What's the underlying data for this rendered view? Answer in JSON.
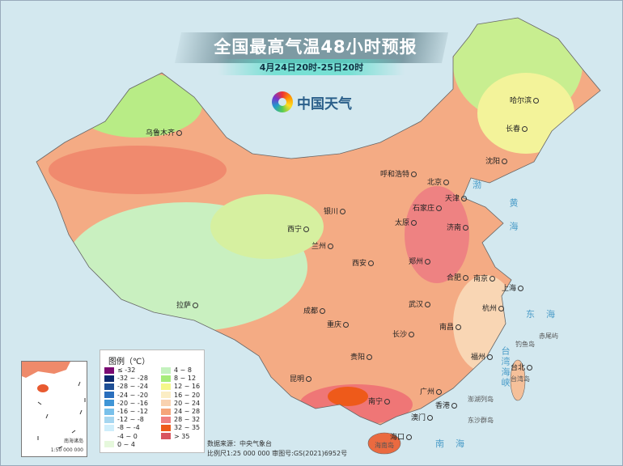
{
  "header": {
    "title": "全国最高气温48小时预报",
    "subtitle": "4月24日20时-25日20时",
    "logo_text": "中国天气",
    "logo_icon": "china-weather-swirl-logo"
  },
  "cities": [
    "乌鲁木齐",
    "哈尔滨",
    "长春",
    "沈阳",
    "呼和浩特",
    "北京",
    "天津",
    "石家庄",
    "太原",
    "济南",
    "银川",
    "西宁",
    "兰州",
    "郑州",
    "西安",
    "合肥",
    "南京",
    "上海",
    "拉萨",
    "成都",
    "武汉",
    "杭州",
    "重庆",
    "长沙",
    "南昌",
    "贵阳",
    "福州",
    "台北",
    "昆明",
    "南宁",
    "广州",
    "香港",
    "澳门",
    "海口"
  ],
  "seas": [
    "渤",
    "黄海",
    "东海",
    "南海",
    "台湾海峡"
  ],
  "islands": [
    "台湾岛",
    "海南岛",
    "钓鱼岛",
    "赤尾屿",
    "澎湖列岛",
    "东沙群岛"
  ],
  "legend": {
    "title": "图例（℃）",
    "items": [
      {
        "label": "≤ -32",
        "color": "#7a0a72"
      },
      {
        "label": "-32 ~ -28",
        "color": "#0d2a6e"
      },
      {
        "label": "-28 ~ -24",
        "color": "#1f4f96"
      },
      {
        "label": "-24 ~ -20",
        "color": "#2a6fbd"
      },
      {
        "label": "-20 ~ -16",
        "color": "#3f95d6"
      },
      {
        "label": "-16 ~ -12",
        "color": "#79c0ea"
      },
      {
        "label": "-12 ~ -8",
        "color": "#a6d6f0"
      },
      {
        "label": "-8 ~ -4",
        "color": "#cfeefb"
      },
      {
        "label": "-4 ~ 0",
        "color": "#ffffff"
      },
      {
        "label": "0 ~ 4",
        "color": "#e6f8dc"
      },
      {
        "label": "4 ~ 8",
        "color": "#c4f2be"
      },
      {
        "label": "8 ~ 12",
        "color": "#a6ec7a"
      },
      {
        "label": "12 ~ 16",
        "color": "#f5f78a"
      },
      {
        "label": "16 ~ 20",
        "color": "#fbedc4"
      },
      {
        "label": "20 ~ 24",
        "color": "#f9d2b0"
      },
      {
        "label": "24 ~ 28",
        "color": "#f5a57a"
      },
      {
        "label": "28 ~ 32",
        "color": "#ef8080"
      },
      {
        "label": "32 ~ 35",
        "color": "#ee5a1a"
      },
      {
        "label": "> 35",
        "color": "#d9545f"
      }
    ]
  },
  "inset": {
    "name": "南海诸岛",
    "scale": "1:50 000 000"
  },
  "source": {
    "line1": "数据来源：中央气象台",
    "line2": "比例尺1:25 000 000   审图号:GS(2021)6952号"
  }
}
